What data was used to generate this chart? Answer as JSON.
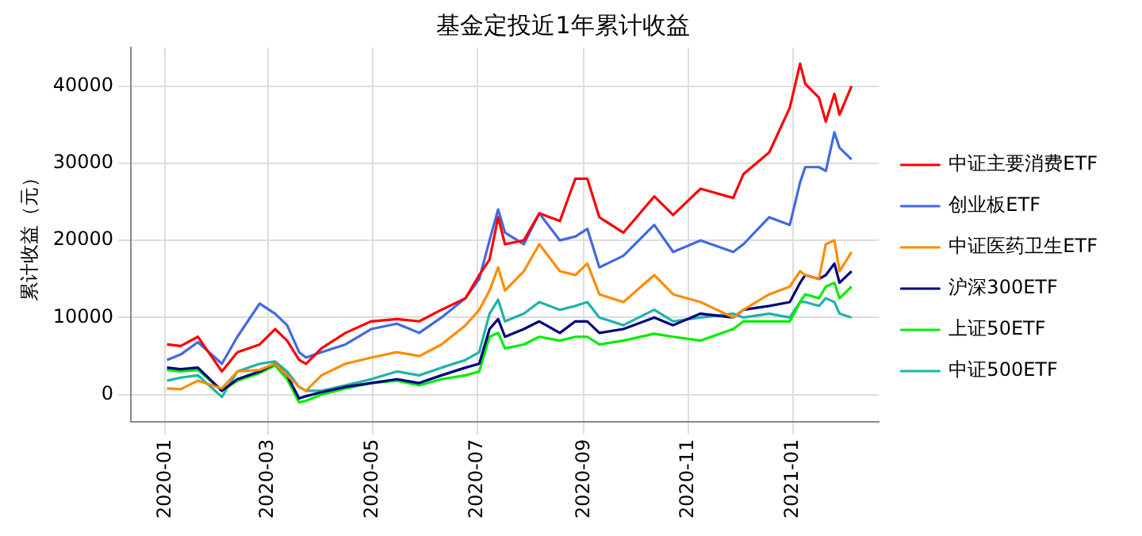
{
  "chart_data": {
    "type": "line",
    "title": "基金定投近1年累计收益",
    "ylabel": "累计收益（元）",
    "x": [
      "2020-01-02",
      "2020-01-10",
      "2020-01-20",
      "2020-02-03",
      "2020-02-12",
      "2020-02-25",
      "2020-03-05",
      "2020-03-12",
      "2020-03-19",
      "2020-03-23",
      "2020-04-01",
      "2020-04-15",
      "2020-04-30",
      "2020-05-15",
      "2020-05-28",
      "2020-06-10",
      "2020-06-24",
      "2020-07-02",
      "2020-07-08",
      "2020-07-13",
      "2020-07-17",
      "2020-07-28",
      "2020-08-06",
      "2020-08-18",
      "2020-08-27",
      "2020-09-03",
      "2020-09-10",
      "2020-09-24",
      "2020-10-12",
      "2020-10-23",
      "2020-11-08",
      "2020-11-27",
      "2020-12-03",
      "2020-12-18",
      "2020-12-30",
      "2021-01-05",
      "2021-01-08",
      "2021-01-16",
      "2021-01-20",
      "2021-01-25",
      "2021-01-28",
      "2021-02-04"
    ],
    "series": [
      {
        "name": "中证主要消费ETF",
        "color": "#ff0000",
        "values": [
          6500,
          6300,
          7500,
          3000,
          5500,
          6500,
          8500,
          7000,
          4500,
          4000,
          6000,
          8000,
          9500,
          9800,
          9500,
          11000,
          12500,
          15500,
          17500,
          23000,
          19500,
          20000,
          23500,
          22500,
          28000,
          28000,
          23000,
          21000,
          25700,
          23300,
          26700,
          25500,
          28600,
          31400,
          37200,
          42900,
          40300,
          38500,
          35400,
          39000,
          36300,
          40000
        ]
      },
      {
        "name": "创业板ETF",
        "color": "#4169e1",
        "values": [
          4500,
          5200,
          6800,
          4000,
          7500,
          11800,
          10500,
          9000,
          5500,
          4800,
          5500,
          6500,
          8500,
          9200,
          8000,
          10000,
          12500,
          15000,
          20000,
          24000,
          21000,
          19500,
          23500,
          20000,
          20500,
          21500,
          16500,
          18000,
          22000,
          18500,
          20000,
          18500,
          19500,
          23000,
          22000,
          27500,
          29500,
          29500,
          29000,
          34000,
          32000,
          30500
        ]
      },
      {
        "name": "中证医药卫生ETF",
        "color": "#ff8c00",
        "values": [
          800,
          700,
          1800,
          800,
          3000,
          3200,
          4000,
          2500,
          1000,
          500,
          2500,
          4000,
          4800,
          5500,
          5000,
          6500,
          9000,
          11000,
          13500,
          16500,
          13500,
          16000,
          19500,
          16000,
          15500,
          17000,
          13000,
          12000,
          15500,
          13000,
          12000,
          10000,
          11000,
          13000,
          14000,
          16000,
          15500,
          15000,
          19500,
          20000,
          16000,
          18500
        ]
      },
      {
        "name": "沪深300ETF",
        "color": "#000080",
        "values": [
          3500,
          3300,
          3500,
          500,
          2000,
          3000,
          4000,
          2500,
          -500,
          -200,
          300,
          1000,
          1500,
          2000,
          1500,
          2500,
          3500,
          4000,
          8500,
          9800,
          7500,
          8500,
          9500,
          8000,
          9500,
          9500,
          8000,
          8500,
          10000,
          9000,
          10500,
          10000,
          11000,
          11500,
          12000,
          14500,
          15500,
          15000,
          15500,
          17000,
          14500,
          16000
        ]
      },
      {
        "name": "上证50ETF",
        "color": "#00ee00",
        "values": [
          3200,
          3000,
          3200,
          500,
          1800,
          2800,
          3800,
          2000,
          -1000,
          -800,
          0,
          800,
          1500,
          1800,
          1200,
          2000,
          2500,
          3000,
          7500,
          8000,
          6000,
          6500,
          7500,
          7000,
          7500,
          7500,
          6500,
          7000,
          7900,
          7500,
          7000,
          8500,
          9500,
          9500,
          9500,
          12000,
          13000,
          12500,
          14000,
          14500,
          12500,
          14000
        ]
      },
      {
        "name": "中证500ETF",
        "color": "#20b2aa",
        "values": [
          1800,
          2200,
          2500,
          -300,
          3000,
          4000,
          4300,
          3000,
          1000,
          500,
          500,
          1200,
          2000,
          3000,
          2500,
          3500,
          4500,
          5500,
          10500,
          12300,
          9500,
          10500,
          12000,
          11000,
          11500,
          12000,
          10000,
          9000,
          11000,
          9500,
          10000,
          10500,
          10000,
          10500,
          10000,
          12000,
          12000,
          11500,
          12500,
          12000,
          10500,
          10000
        ]
      }
    ],
    "xlim": [
      "2019-12-12",
      "2021-02-20"
    ],
    "xticks": [
      {
        "value": "2020-01-01",
        "label": "2020-01"
      },
      {
        "value": "2020-03-01",
        "label": "2020-03"
      },
      {
        "value": "2020-05-01",
        "label": "2020-05"
      },
      {
        "value": "2020-07-01",
        "label": "2020-07"
      },
      {
        "value": "2020-09-01",
        "label": "2020-09"
      },
      {
        "value": "2020-11-01",
        "label": "2020-11"
      },
      {
        "value": "2021-01-01",
        "label": "2021-01"
      }
    ],
    "ylim": [
      -3500,
      45000
    ],
    "yticks": [
      0,
      10000,
      20000,
      30000,
      40000
    ],
    "grid": true,
    "legend": "right",
    "marker": "none",
    "line_style": "solid"
  }
}
